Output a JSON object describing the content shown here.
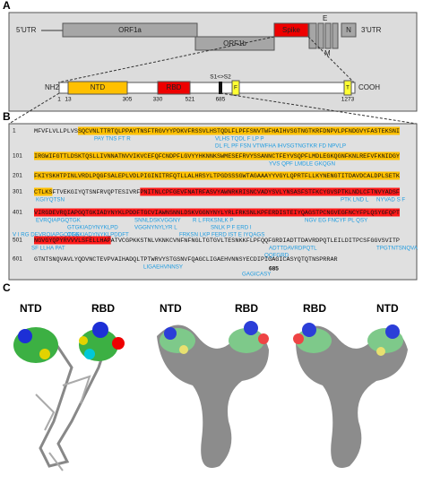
{
  "panel_a": {
    "label": "A",
    "genome": {
      "utr5": "5'UTR",
      "orf1a": "ORF1a",
      "orf1b": "ORF1b",
      "spike": "Spike",
      "e": "E",
      "m": "M",
      "n": "N",
      "utr3": "3'UTR"
    },
    "protein": {
      "nh2": "NH2",
      "cooh": "COOH",
      "ntd": "NTD",
      "rbd": "RBD",
      "cleavage": "S1<>S2",
      "fusion": "F",
      "transmembrane": "T",
      "positions": [
        1,
        13,
        305,
        330,
        521,
        685,
        1273
      ]
    }
  },
  "panel_b": {
    "label": "B",
    "end": 685,
    "lines": [
      {
        "start": 1,
        "sequence": "MFVFLVLLPLVSSQCVNLTTRTQLPPAYTNSFTRGVYYPDKVFRSSVLHSTQDLFLPFFSNVTWFHAIHVSGTNGTKRFDNPVLPFNDGVYFASTEKSNI",
        "epitopes": [
          [
            "PAY TNS FT R",
            "VLHS TQDL F LP P"
          ],
          [
            "DL FL PF FSN VTWFHA IHVSGTNGTKR FD NPVLP"
          ]
        ]
      },
      {
        "start": 101,
        "sequence": "IRGWIFGTTLDSKTQSLLIVNNATNVVIKVCEFQFCNDPFLGVYYHKNNKSWMESEFRVYSSANNCTFEYVSQPFLMDLEGKQGNFKNLREFVFKNIDGY",
        "epitopes": [
          [
            "YVS QPF LMDLE GKQGN"
          ]
        ]
      },
      {
        "start": 201,
        "sequence": "FKIYSKHTPINLVRDLPQGFSALEPLVDLPIGINITRFQTLLALHRSYLTPGDSSSGWTAGAAAYYVGYLQPRTFLLKYNENGTITDAVDCALDPLSETK",
        "epitopes": []
      },
      {
        "start": 301,
        "sequence": "CTLKSFTVEKGIYQTSNFRVQPTESIVRFPNITNLCPFGEVFNATRFASVYAWNRKRISNCVADYSVLYNSASFSTFKCYGVSPTKLNDLCFTNVYADSF",
        "epitopes": [
          [
            "KGIYQTSN",
            "PTK LND L",
            "NYVAD S F"
          ]
        ]
      },
      {
        "start": 401,
        "sequence": "VIRGDEVRQIAPGQTGKIADYNYKLPDDFTGCVIAWNSNNLDSKVGGNYNYLYRLFRKSNLKPFERDISTEIYQAGSTPCNGVEGFNCYFPLQSYGFQPT",
        "epitopes": [
          [
            "EVRQIAPGQTGK",
            "SNNLDSKVGGNY",
            "R L FRKSNLK P",
            "NGV EG FNCYF PL QSY"
          ],
          [
            "GTGKIADYNYKLPD",
            "VGGNYNYLYR L",
            "SNLK P F ERD I"
          ],
          [
            "V I RG DEVRQIAPGQTGK",
            "QTGKIADYNYKLPDDFT",
            "FRKSN LKP FERD IST E IYQAGS"
          ]
        ]
      },
      {
        "start": 501,
        "sequence": "NGVGYQPYRVVVLSFELLHAPATVCGPKKSTNLVKNKCVNFNFNGLTGTGVLTESNKKFLPFQQFGRDIADTTDAVRDPQTLEILDITPCSFGGVSVITP",
        "epitopes": [
          [
            "SF LLHA PAT",
            "ADTTDAVRDPQTL",
            "TPGTNTSNQVA"
          ],
          [
            "QQFGRD"
          ]
        ]
      },
      {
        "start": 601,
        "sequence": "GTNTSNQVAVLYQDVNCTEVPVAIHADQLTPTWRVYSTGSNVFQAGCLIGAEHVNNSYECDIPIGAGICASYQTQTNSPRRAR",
        "epitopes": [
          [
            "LIGAEHVNNSY"
          ],
          [
            "GAGICASY"
          ]
        ]
      }
    ]
  },
  "panel_c": {
    "label": "C",
    "views": [
      {
        "left": "NTD",
        "right": "RBD"
      },
      {
        "left": "NTD",
        "right": "RBD"
      },
      {
        "left": "RBD",
        "right": "NTD"
      }
    ]
  }
}
